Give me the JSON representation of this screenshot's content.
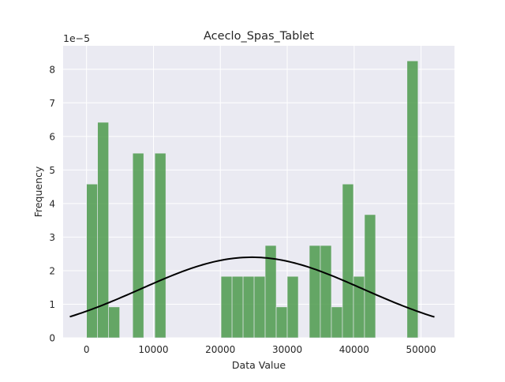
{
  "chart_data": {
    "type": "bar",
    "title": "Aceclo_Spas_Tablet",
    "xlabel": "Data Value",
    "ylabel": "Frequency",
    "y_offset_text": "1e−5",
    "xlim": [
      -3500,
      55000
    ],
    "ylim": [
      0,
      8.7
    ],
    "x_ticks": [
      0,
      10000,
      20000,
      30000,
      40000,
      50000
    ],
    "x_tick_labels": [
      "0",
      "10000",
      "20000",
      "30000",
      "40000",
      "50000"
    ],
    "y_ticks": [
      0,
      1,
      2,
      3,
      4,
      5,
      6,
      7,
      8
    ],
    "y_tick_labels": [
      "0",
      "1",
      "2",
      "3",
      "4",
      "5",
      "6",
      "7",
      "8"
    ],
    "grid": true,
    "bar_color": "#4c9a4c",
    "curve_color": "#000000",
    "background_color": "#eaeaf2",
    "bins": [
      {
        "x0": 0,
        "x1": 1650,
        "value": 4.58
      },
      {
        "x0": 1650,
        "x1": 3300,
        "value": 6.42
      },
      {
        "x0": 3300,
        "x1": 4950,
        "value": 0.92
      },
      {
        "x0": 6900,
        "x1": 8550,
        "value": 5.5
      },
      {
        "x0": 10200,
        "x1": 11850,
        "value": 5.5
      },
      {
        "x0": 20100,
        "x1": 21750,
        "value": 1.83
      },
      {
        "x0": 21750,
        "x1": 23400,
        "value": 1.83
      },
      {
        "x0": 23400,
        "x1": 25050,
        "value": 1.83
      },
      {
        "x0": 25050,
        "x1": 26700,
        "value": 1.83
      },
      {
        "x0": 26700,
        "x1": 28350,
        "value": 2.75
      },
      {
        "x0": 28350,
        "x1": 30000,
        "value": 0.92
      },
      {
        "x0": 30000,
        "x1": 31650,
        "value": 1.83
      },
      {
        "x0": 33300,
        "x1": 34950,
        "value": 2.75
      },
      {
        "x0": 34950,
        "x1": 36600,
        "value": 2.75
      },
      {
        "x0": 36600,
        "x1": 38250,
        "value": 0.92
      },
      {
        "x0": 38250,
        "x1": 39900,
        "value": 4.58
      },
      {
        "x0": 39900,
        "x1": 41550,
        "value": 1.83
      },
      {
        "x0": 41550,
        "x1": 43200,
        "value": 3.67
      },
      {
        "x0": 47900,
        "x1": 49550,
        "value": 8.25
      }
    ],
    "normal_curve": {
      "mean": 24700,
      "sd": 16600,
      "peak": 2.4,
      "x_range": [
        -2500,
        52000
      ]
    }
  }
}
